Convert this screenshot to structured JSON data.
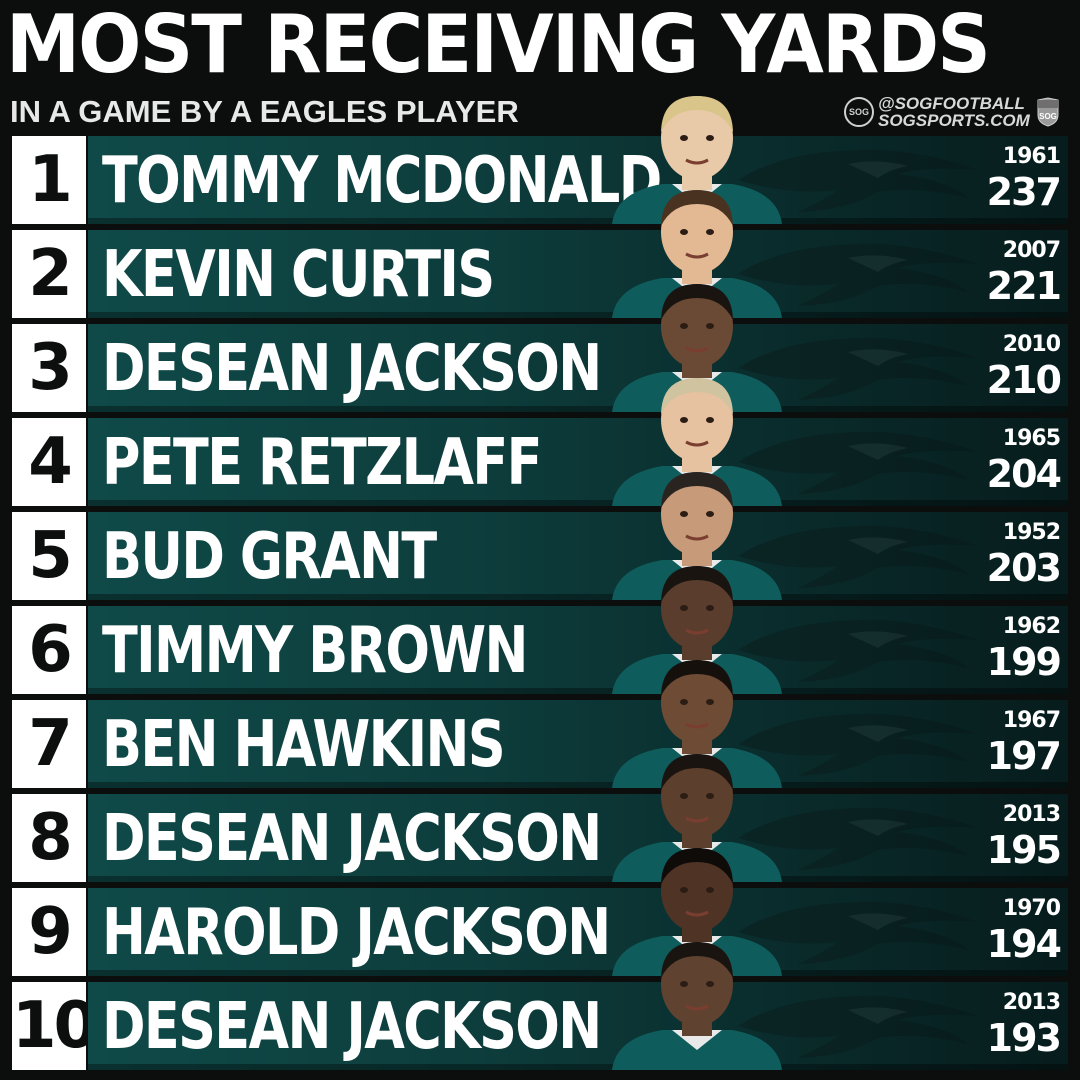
{
  "header": {
    "title": "MOST RECEIVING YARDS",
    "subtitle": "IN A GAME BY A EAGLES PLAYER",
    "brand_mark": "SOG",
    "brand_handle": "@SOGFOOTBALL",
    "brand_site": "SOGSPORTS.COM",
    "nfl_shield_text": "SOG"
  },
  "colors": {
    "background": "#0c0d0d",
    "bar_dark": "#071c1c",
    "bar_teal": "#0f4a48",
    "rank_box": "#ffffff",
    "jersey": "#0f5c5c"
  },
  "rows": [
    {
      "rank": "1",
      "name": "TOMMY MCDONALD",
      "year": "1961",
      "yards": "237",
      "icon": "player-photo"
    },
    {
      "rank": "2",
      "name": "KEVIN CURTIS",
      "year": "2007",
      "yards": "221",
      "icon": "player-photo"
    },
    {
      "rank": "3",
      "name": "DESEAN JACKSON",
      "year": "2010",
      "yards": "210",
      "icon": "player-photo"
    },
    {
      "rank": "4",
      "name": "PETE RETZLAFF",
      "year": "1965",
      "yards": "204",
      "icon": "player-photo"
    },
    {
      "rank": "5",
      "name": "BUD GRANT",
      "year": "1952",
      "yards": "203",
      "icon": "player-photo"
    },
    {
      "rank": "6",
      "name": "TIMMY BROWN",
      "year": "1962",
      "yards": "199",
      "icon": "player-photo"
    },
    {
      "rank": "7",
      "name": "BEN HAWKINS",
      "year": "1967",
      "yards": "197",
      "icon": "player-photo"
    },
    {
      "rank": "8",
      "name": "DESEAN JACKSON",
      "year": "2013",
      "yards": "195",
      "icon": "player-photo"
    },
    {
      "rank": "9",
      "name": "HAROLD JACKSON",
      "year": "1970",
      "yards": "194",
      "icon": "player-photo"
    },
    {
      "rank": "10",
      "name": "DESEAN JACKSON",
      "year": "2013",
      "yards": "193",
      "icon": "player-photo"
    }
  ]
}
